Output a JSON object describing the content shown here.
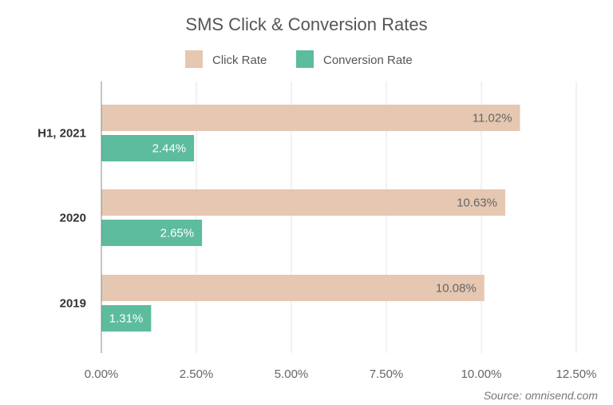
{
  "chart_data": {
    "type": "bar",
    "orientation": "horizontal",
    "title": "SMS Click & Conversion Rates",
    "categories": [
      "H1, 2021",
      "2020",
      "2019"
    ],
    "series": [
      {
        "name": "Click Rate",
        "color": "#e6c7b1",
        "label_color": "#666666",
        "values": [
          11.02,
          10.63,
          10.08
        ],
        "labels": [
          "11.02%",
          "10.63%",
          "10.08%"
        ]
      },
      {
        "name": "Conversion Rate",
        "color": "#5dbb9e",
        "label_color": "#ffffff",
        "values": [
          2.44,
          2.65,
          1.31
        ],
        "labels": [
          "2.44%",
          "2.65%",
          "1.31%"
        ]
      }
    ],
    "xlim": [
      0,
      12.5
    ],
    "xticks": [
      0,
      2.5,
      5,
      7.5,
      10,
      12.5
    ],
    "xtick_labels": [
      "0.00%",
      "2.50%",
      "5.00%",
      "7.50%",
      "10.00%",
      "12.50%"
    ],
    "grid": true,
    "legend_position": "top-center",
    "source": "Source: omnisend.com"
  }
}
